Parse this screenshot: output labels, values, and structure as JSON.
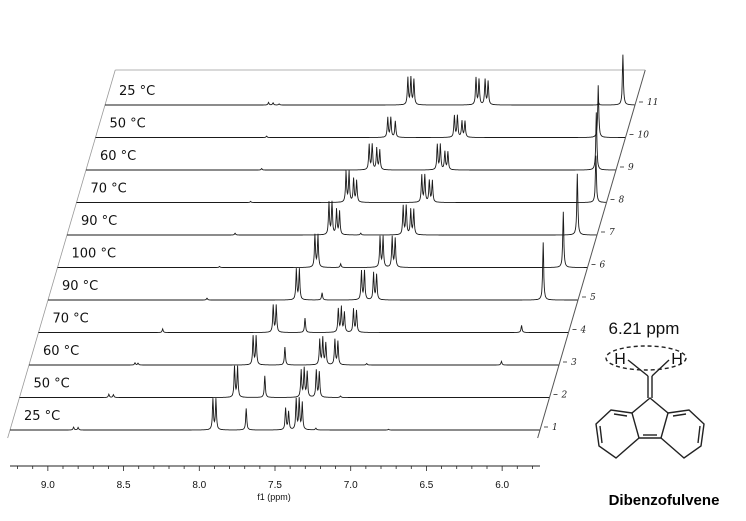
{
  "chart_data": {
    "type": "line",
    "title": "",
    "xlabel": "f1 (ppm)",
    "ylabel": "",
    "x_reversed": true,
    "xlim": [
      9.25,
      5.75
    ],
    "x_ticks": [
      "9.0",
      "8.5",
      "8.0",
      "7.5",
      "7.0",
      "6.5",
      "6.0"
    ],
    "x_tick_values": [
      9.0,
      8.5,
      8.0,
      7.5,
      7.0,
      6.5,
      6.0
    ],
    "series": [
      {
        "index": "1",
        "label": "25 °C",
        "peaks": [
          [
            8.83,
            0.08
          ],
          [
            8.8,
            0.07
          ],
          [
            7.91,
            0.85
          ],
          [
            7.89,
            0.85
          ],
          [
            7.69,
            0.6
          ],
          [
            7.43,
            0.6
          ],
          [
            7.41,
            0.5
          ],
          [
            7.36,
            0.85
          ],
          [
            7.34,
            0.85
          ],
          [
            7.32,
            0.75
          ],
          [
            7.23,
            0.05
          ],
          [
            6.75,
            0.02
          ]
        ]
      },
      {
        "index": "2",
        "label": "50 °C",
        "peaks": [
          [
            8.66,
            0.09
          ],
          [
            8.63,
            0.08
          ],
          [
            7.83,
            0.85
          ],
          [
            7.81,
            0.85
          ],
          [
            7.63,
            0.6
          ],
          [
            7.39,
            0.75
          ],
          [
            7.37,
            0.8
          ],
          [
            7.35,
            0.7
          ],
          [
            7.29,
            0.75
          ],
          [
            7.27,
            0.7
          ],
          [
            7.13,
            0.04
          ]
        ]
      },
      {
        "index": "3",
        "label": "60 °C",
        "peaks": [
          [
            8.55,
            0.06
          ],
          [
            8.53,
            0.05
          ],
          [
            7.77,
            0.8
          ],
          [
            7.75,
            0.8
          ],
          [
            7.56,
            0.5
          ],
          [
            7.33,
            0.7
          ],
          [
            7.31,
            0.75
          ],
          [
            7.29,
            0.6
          ],
          [
            7.23,
            0.7
          ],
          [
            7.21,
            0.65
          ],
          [
            7.02,
            0.04
          ],
          [
            6.13,
            0.1
          ]
        ]
      },
      {
        "index": "4",
        "label": "70 °C",
        "peaks": [
          [
            8.43,
            0.1
          ],
          [
            7.7,
            0.75
          ],
          [
            7.68,
            0.75
          ],
          [
            7.49,
            0.4
          ],
          [
            7.27,
            0.65
          ],
          [
            7.25,
            0.7
          ],
          [
            7.23,
            0.55
          ],
          [
            7.17,
            0.65
          ],
          [
            7.15,
            0.6
          ],
          [
            6.06,
            0.2
          ]
        ]
      },
      {
        "index": "5",
        "label": "90 °C",
        "peaks": [
          [
            8.2,
            0.05
          ],
          [
            7.61,
            0.85
          ],
          [
            7.59,
            0.85
          ],
          [
            7.44,
            0.2
          ],
          [
            7.18,
            0.8
          ],
          [
            7.16,
            0.8
          ],
          [
            7.1,
            0.75
          ],
          [
            7.08,
            0.7
          ],
          [
            5.98,
            1.6
          ]
        ]
      },
      {
        "index": "6",
        "label": "100 °C",
        "peaks": [
          [
            8.18,
            0.03
          ],
          [
            7.55,
            0.9
          ],
          [
            7.53,
            0.9
          ],
          [
            7.38,
            0.1
          ],
          [
            7.12,
            0.85
          ],
          [
            7.1,
            0.85
          ],
          [
            7.04,
            0.85
          ],
          [
            7.02,
            0.8
          ],
          [
            5.91,
            1.55
          ]
        ]
      },
      {
        "index": "7",
        "label": "90 °C",
        "peaks": [
          [
            8.14,
            0.05
          ],
          [
            7.52,
            0.9
          ],
          [
            7.5,
            0.9
          ],
          [
            7.47,
            0.7
          ],
          [
            7.45,
            0.65
          ],
          [
            7.31,
            0.05
          ],
          [
            7.03,
            0.8
          ],
          [
            7.01,
            0.8
          ],
          [
            6.98,
            0.7
          ],
          [
            6.96,
            0.7
          ],
          [
            5.88,
            1.7
          ]
        ]
      },
      {
        "index": "8",
        "label": "70 °C",
        "peaks": [
          [
            8.1,
            0.03
          ],
          [
            7.47,
            0.85
          ],
          [
            7.45,
            0.85
          ],
          [
            7.42,
            0.65
          ],
          [
            7.4,
            0.6
          ],
          [
            6.97,
            0.75
          ],
          [
            6.95,
            0.75
          ],
          [
            6.92,
            0.6
          ],
          [
            6.9,
            0.6
          ],
          [
            5.82,
            1.3
          ]
        ]
      },
      {
        "index": "9",
        "label": "60 °C",
        "peaks": [
          [
            8.09,
            0.04
          ],
          [
            7.38,
            0.7
          ],
          [
            7.36,
            0.7
          ],
          [
            7.33,
            0.6
          ],
          [
            7.31,
            0.55
          ],
          [
            6.93,
            0.7
          ],
          [
            6.91,
            0.7
          ],
          [
            6.88,
            0.5
          ],
          [
            6.86,
            0.5
          ],
          [
            5.88,
            1.6
          ]
        ]
      },
      {
        "index": "10",
        "label": "50 °C",
        "peaks": [
          [
            8.12,
            0.04
          ],
          [
            7.32,
            0.55
          ],
          [
            7.3,
            0.55
          ],
          [
            7.27,
            0.45
          ],
          [
            6.88,
            0.6
          ],
          [
            6.86,
            0.6
          ],
          [
            6.83,
            0.45
          ],
          [
            6.81,
            0.45
          ],
          [
            5.93,
            1.45
          ]
        ]
      },
      {
        "index": "11",
        "label": "25 °C",
        "peaks": [
          [
            8.17,
            0.07
          ],
          [
            8.14,
            0.06
          ],
          [
            8.1,
            0.03
          ],
          [
            7.25,
            0.75
          ],
          [
            7.23,
            0.75
          ],
          [
            7.21,
            0.7
          ],
          [
            6.8,
            0.75
          ],
          [
            6.78,
            0.7
          ],
          [
            6.74,
            0.7
          ],
          [
            6.72,
            0.65
          ],
          [
            5.99,
            0.06
          ],
          [
            5.83,
            1.4
          ]
        ]
      }
    ]
  },
  "annotation": {
    "shift_label": "6.21 ppm",
    "h_left": "H",
    "h_right": "H",
    "molecule_name": "Dibenzofulvene"
  },
  "colors": {
    "trace": "#1a1a1a",
    "frame": "#555555"
  }
}
